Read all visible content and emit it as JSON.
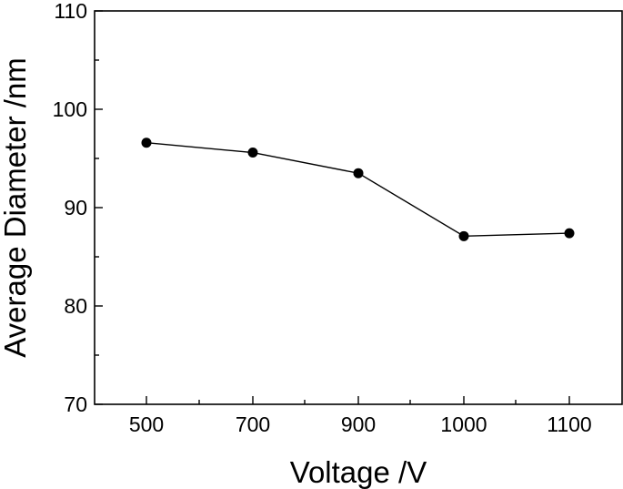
{
  "chart_data": {
    "type": "line",
    "title": "",
    "xlabel": "Voltage /V",
    "ylabel": "Average Diameter /nm",
    "categories": [
      "500",
      "700",
      "900",
      "1000",
      "1100"
    ],
    "x": [
      500,
      700,
      900,
      1000,
      1100
    ],
    "series": [
      {
        "values": [
          96.6,
          95.6,
          93.5,
          87.1,
          87.4
        ]
      }
    ],
    "ylim": [
      70,
      110
    ],
    "yticks": [
      "70",
      "80",
      "90",
      "100",
      "110"
    ],
    "grid": false,
    "legend": "none",
    "marker": "filled-circle",
    "line_color": "#000000"
  }
}
